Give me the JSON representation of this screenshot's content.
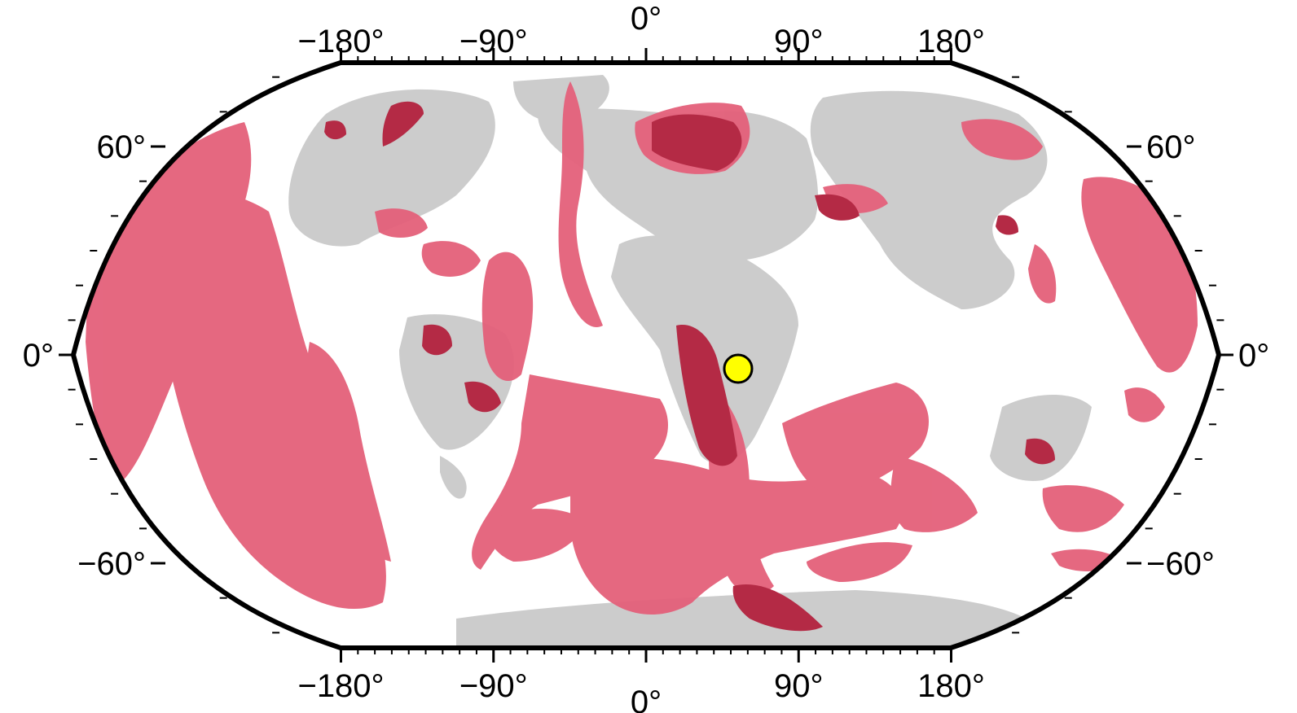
{
  "map": {
    "projection": "Robinson",
    "colors": {
      "ocean": "#ffffff",
      "land": "#cccccc",
      "anomaly": "#e4607a",
      "anomaly_strong": "#b42a45",
      "frame": "#000000",
      "marker": "#ffff00"
    },
    "marker": {
      "name": "site",
      "lon": 70,
      "lat": -5
    },
    "lon_ticks": [
      {
        "value": -180,
        "label": "−180°"
      },
      {
        "value": -90,
        "label": "−90°"
      },
      {
        "value": 0,
        "label": "0°"
      },
      {
        "value": 90,
        "label": "90°"
      },
      {
        "value": 180,
        "label": "180°"
      }
    ],
    "lat_ticks": [
      {
        "value": 60,
        "label": "60°"
      },
      {
        "value": 0,
        "label": "0°"
      },
      {
        "value": -60,
        "label": "−60°"
      }
    ]
  }
}
